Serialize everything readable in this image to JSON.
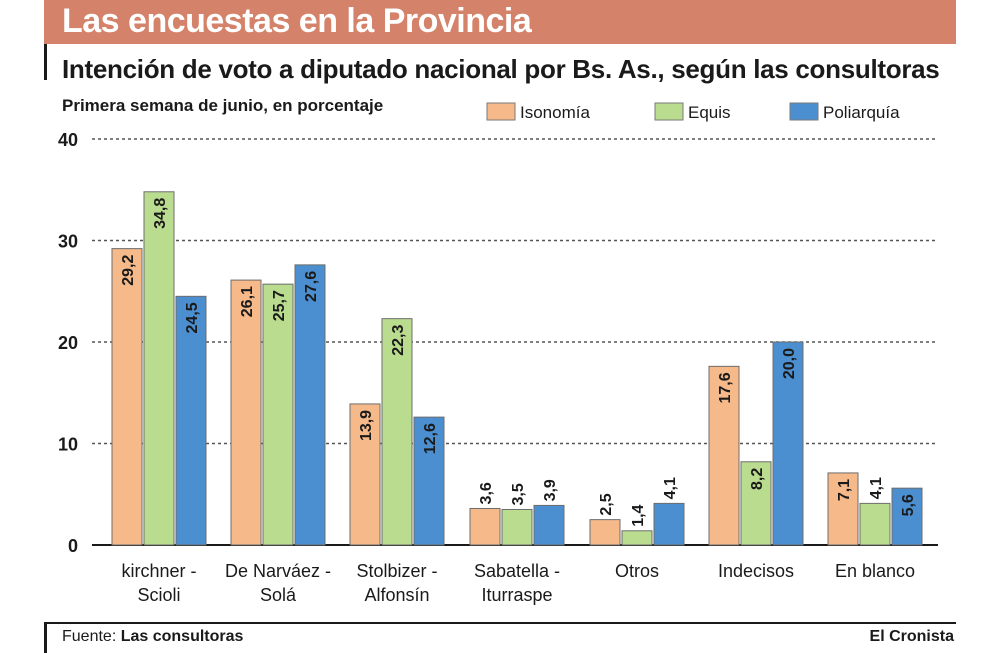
{
  "header": {
    "title": "Las encuestas en la Provincia"
  },
  "chart_data": {
    "type": "bar",
    "title": "Intención de voto a diputado nacional por Bs. As., según las consultoras",
    "subtitle": "Primera semana de junio, en porcentaje",
    "categories": [
      [
        "kirchner -",
        "Scioli"
      ],
      [
        "De Narváez -",
        "Solá"
      ],
      [
        "Stolbizer -",
        "Alfonsín"
      ],
      [
        "Sabatella -",
        "Iturraspe"
      ],
      [
        "Otros"
      ],
      [
        "Indecisos"
      ],
      [
        "En blanco"
      ]
    ],
    "series": [
      {
        "name": "Isonomía",
        "color": "#f6b98a",
        "values": [
          29.2,
          26.1,
          13.9,
          3.6,
          2.5,
          17.6,
          7.1
        ],
        "labels": [
          "29,2",
          "26,1",
          "13,9",
          "3,6",
          "2,5",
          "17,6",
          "7,1"
        ]
      },
      {
        "name": "Equis",
        "color": "#b9dc8e",
        "values": [
          34.8,
          25.7,
          22.3,
          3.5,
          1.4,
          8.2,
          4.1
        ],
        "labels": [
          "34,8",
          "25,7",
          "22,3",
          "3,5",
          "1,4",
          "8,2",
          "4,1"
        ]
      },
      {
        "name": "Poliarquía",
        "color": "#4b8fd0",
        "values": [
          24.5,
          27.6,
          12.6,
          3.9,
          4.1,
          20.0,
          5.6
        ],
        "labels": [
          "24,5",
          "27,6",
          "12,6",
          "3,9",
          "4,1",
          "20,0",
          "5,6"
        ]
      }
    ],
    "yticks": [
      0,
      10,
      20,
      30,
      40
    ],
    "ylim": [
      0,
      40
    ],
    "grid": true,
    "legend": "top-right"
  },
  "footer": {
    "source_label": "Fuente:",
    "source_value": "Las consultoras",
    "credit": "El Cronista"
  }
}
